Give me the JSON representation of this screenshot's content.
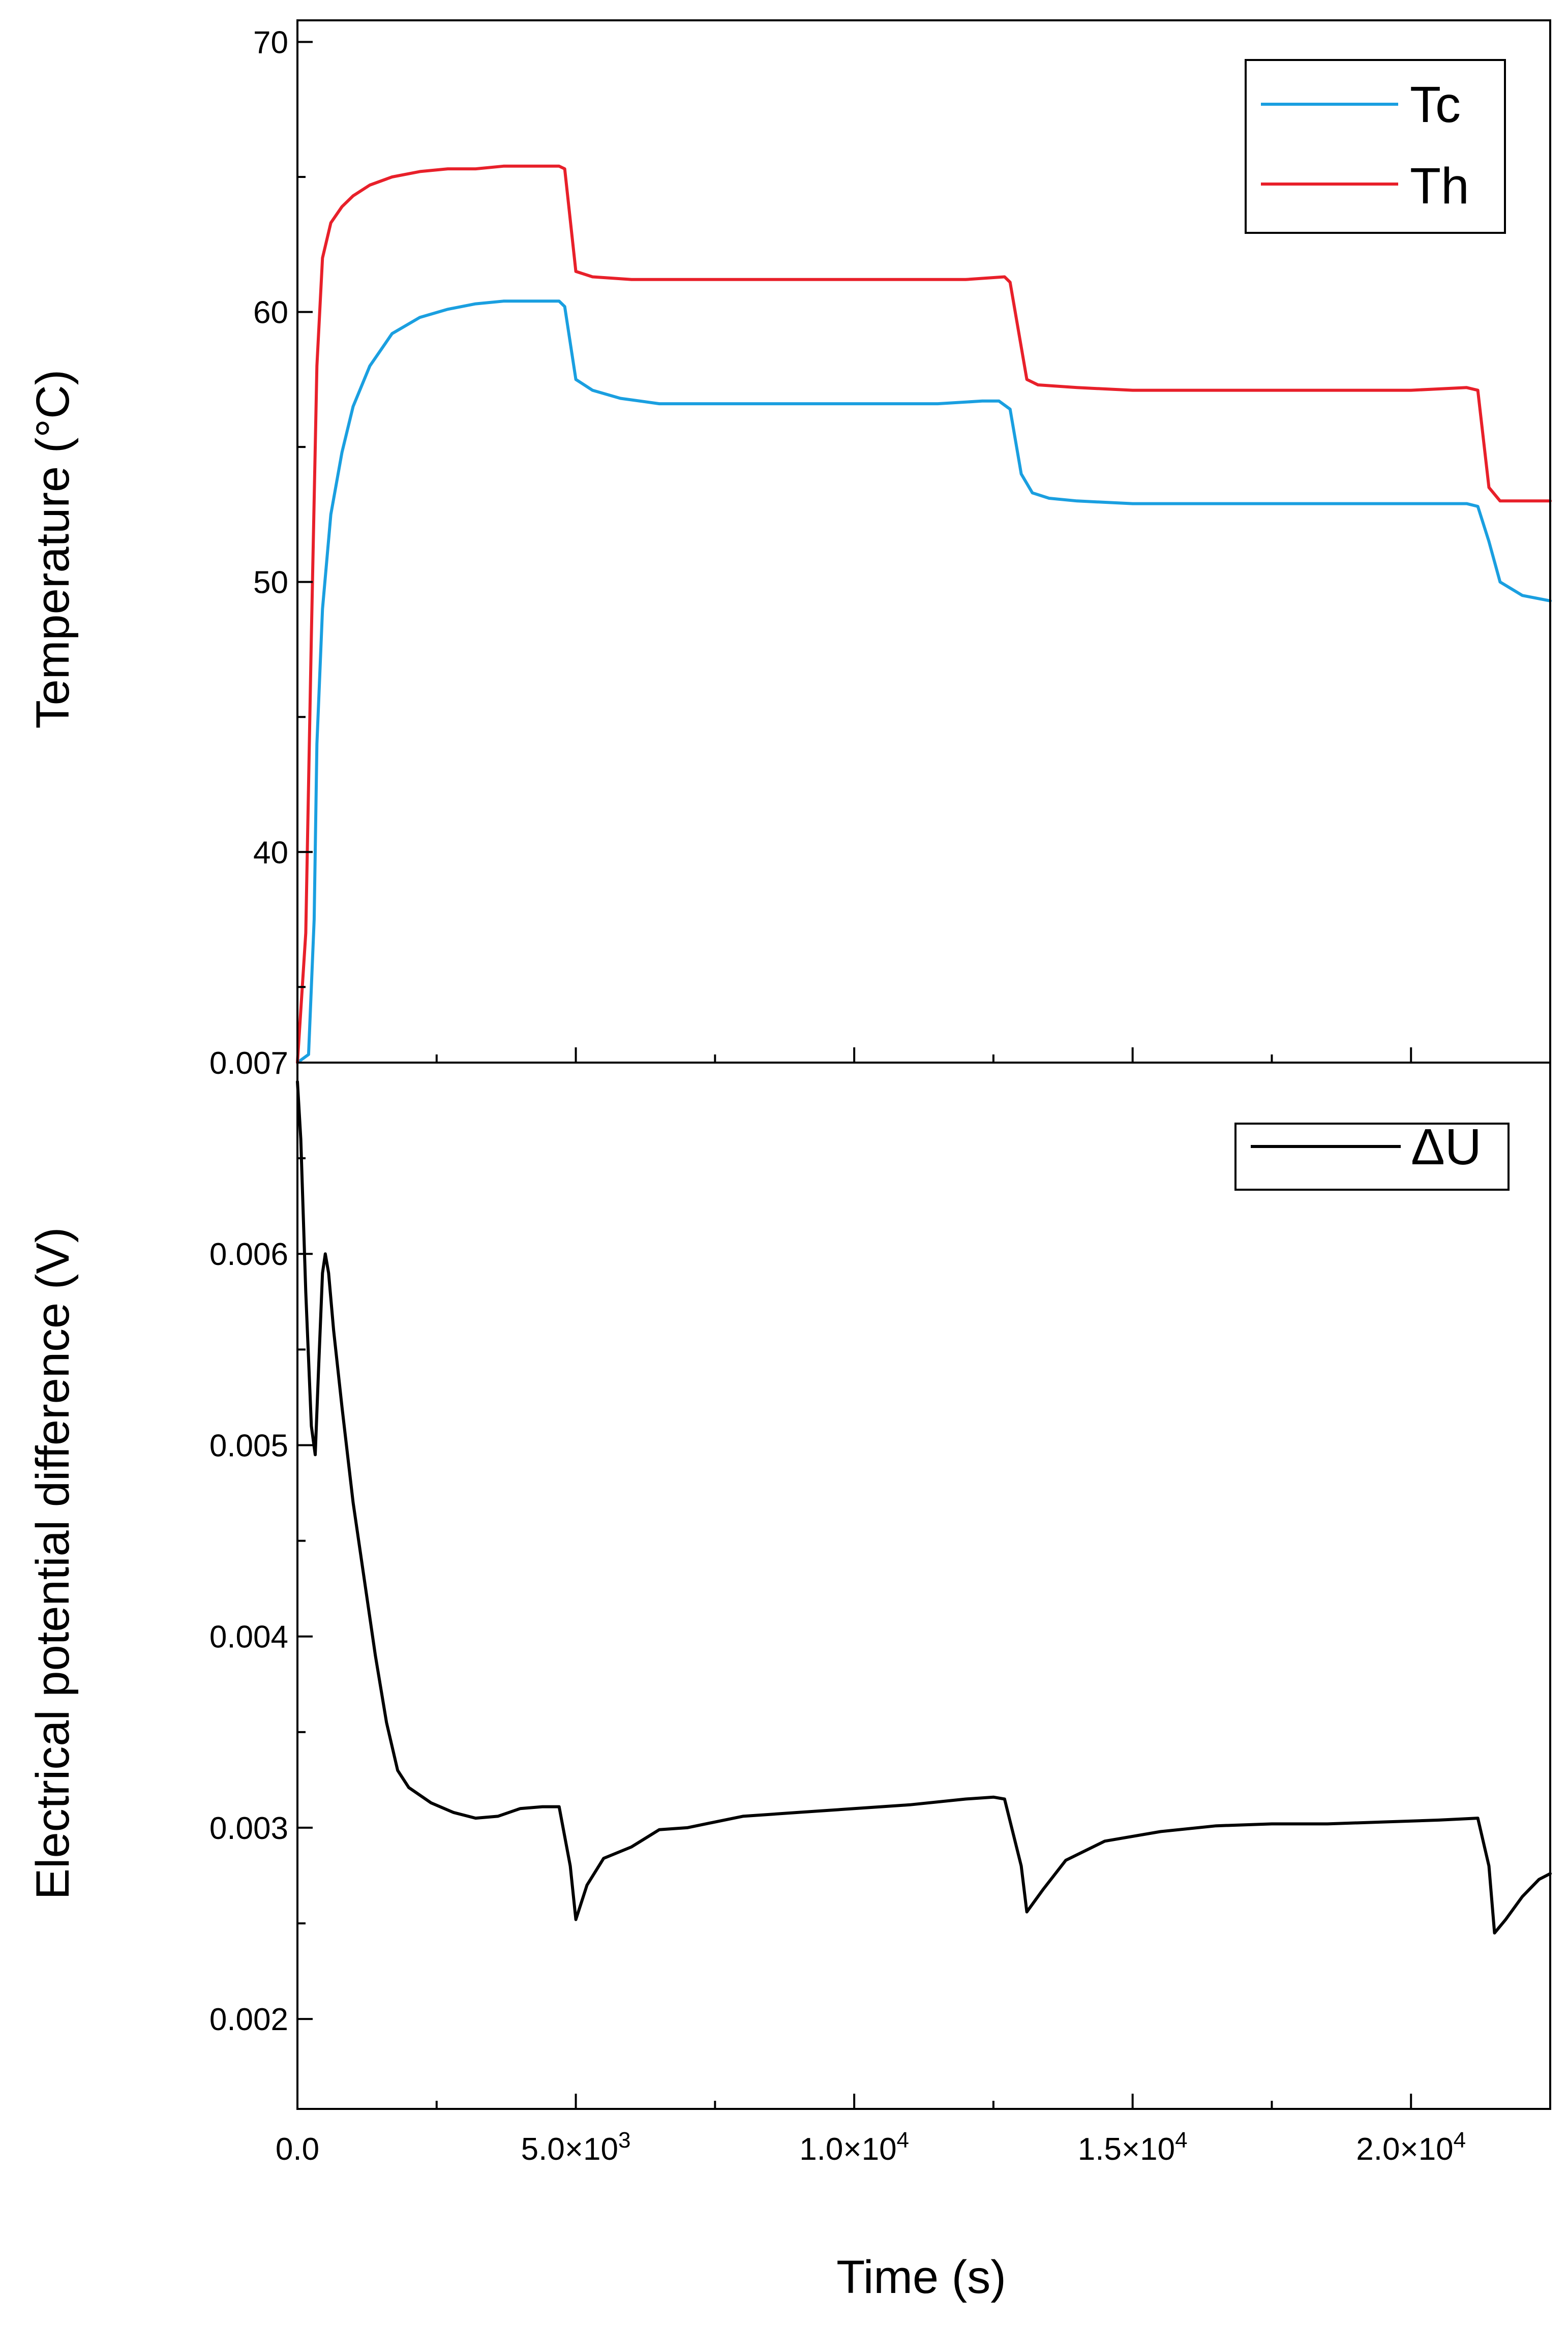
{
  "chart_data": [
    {
      "type": "line",
      "panel": "top",
      "ylabel": "Temperature (°C)",
      "xlabel": "",
      "xlim": [
        0,
        22500
      ],
      "ylim": [
        32.2,
        70.8
      ],
      "yticks": [
        40,
        50,
        60,
        70
      ],
      "ytick_labels": [
        "40",
        "50",
        "60",
        "70"
      ],
      "legend_position": "top-right",
      "series": [
        {
          "name": "Tc",
          "color": "#1a9fe0",
          "x": [
            0,
            200,
            300,
            350,
            450,
            600,
            800,
            1000,
            1300,
            1700,
            2200,
            2700,
            3200,
            3700,
            4200,
            4700,
            4800,
            5000,
            5300,
            5800,
            6500,
            7500,
            8500,
            9500,
            10500,
            11500,
            12300,
            12600,
            12800,
            13000,
            13200,
            13500,
            14000,
            15000,
            16000,
            17000,
            18000,
            19000,
            20000,
            21000,
            21200,
            21400,
            21600,
            22000,
            22500
          ],
          "y": [
            32.2,
            32.5,
            37.5,
            44,
            49,
            52.5,
            54.8,
            56.5,
            58,
            59.2,
            59.8,
            60.1,
            60.3,
            60.4,
            60.4,
            60.4,
            60.2,
            57.5,
            57.1,
            56.8,
            56.6,
            56.6,
            56.6,
            56.6,
            56.6,
            56.6,
            56.7,
            56.7,
            56.4,
            54,
            53.3,
            53.1,
            53,
            52.9,
            52.9,
            52.9,
            52.9,
            52.9,
            52.9,
            52.9,
            52.8,
            51.5,
            50,
            49.5,
            49.3
          ]
        },
        {
          "name": "Th",
          "color": "#e8202a",
          "x": [
            0,
            150,
            250,
            350,
            450,
            600,
            800,
            1000,
            1300,
            1700,
            2200,
            2700,
            3200,
            3700,
            4200,
            4700,
            4800,
            5000,
            5300,
            6000,
            7000,
            8000,
            9000,
            10000,
            11000,
            12000,
            12700,
            12800,
            13100,
            13300,
            14000,
            15000,
            16000,
            17000,
            18000,
            19000,
            20000,
            21000,
            21200,
            21400,
            21600,
            22000,
            22500
          ],
          "y": [
            32.2,
            37,
            48,
            58,
            62,
            63.3,
            63.9,
            64.3,
            64.7,
            65,
            65.2,
            65.3,
            65.3,
            65.4,
            65.4,
            65.4,
            65.3,
            61.5,
            61.3,
            61.2,
            61.2,
            61.2,
            61.2,
            61.2,
            61.2,
            61.2,
            61.3,
            61.1,
            57.5,
            57.3,
            57.2,
            57.1,
            57.1,
            57.1,
            57.1,
            57.1,
            57.1,
            57.2,
            57.1,
            53.5,
            53,
            53,
            53
          ]
        }
      ]
    },
    {
      "type": "line",
      "panel": "bottom",
      "ylabel": "Electrical potential difference (V)",
      "xlabel": "Time (s)",
      "xlim": [
        0,
        22500
      ],
      "ylim": [
        0.00153,
        0.007
      ],
      "yticks": [
        0.002,
        0.003,
        0.004,
        0.005,
        0.006,
        0.007
      ],
      "ytick_labels": [
        "0.002",
        "0.003",
        "0.004",
        "0.005",
        "0.006",
        "0.007"
      ],
      "xticks": [
        0,
        5000,
        10000,
        15000,
        20000
      ],
      "xtick_labels": [
        "0.0",
        "5.0×10",
        "1.0×10",
        "1.5×10",
        "2.0×10"
      ],
      "xtick_exponents": [
        "",
        "3",
        "4",
        "4",
        "4"
      ],
      "legend_position": "top-right",
      "series": [
        {
          "name": "ΔU",
          "color": "#000000",
          "x": [
            0,
            60,
            150,
            250,
            320,
            380,
            450,
            500,
            560,
            650,
            800,
            1000,
            1200,
            1400,
            1600,
            1800,
            2000,
            2400,
            2800,
            3200,
            3600,
            4000,
            4400,
            4700,
            4900,
            5000,
            5200,
            5500,
            6000,
            6500,
            7000,
            8000,
            9000,
            10000,
            11000,
            12000,
            12500,
            12700,
            13000,
            13100,
            13400,
            13800,
            14500,
            15500,
            16500,
            17500,
            18500,
            19500,
            20500,
            21200,
            21400,
            21500,
            21700,
            22000,
            22300,
            22500
          ],
          "y": [
            0.0069,
            0.0066,
            0.0058,
            0.0051,
            0.00495,
            0.0054,
            0.0059,
            0.006,
            0.0059,
            0.0056,
            0.0052,
            0.0047,
            0.0043,
            0.0039,
            0.00355,
            0.0033,
            0.00321,
            0.00313,
            0.00308,
            0.00305,
            0.00306,
            0.0031,
            0.00311,
            0.00311,
            0.0028,
            0.00252,
            0.0027,
            0.00284,
            0.0029,
            0.00299,
            0.003,
            0.00306,
            0.00308,
            0.0031,
            0.00312,
            0.00315,
            0.00316,
            0.00315,
            0.0028,
            0.00256,
            0.00268,
            0.00283,
            0.00293,
            0.00298,
            0.00301,
            0.00302,
            0.00302,
            0.00303,
            0.00304,
            0.00305,
            0.0028,
            0.00245,
            0.00252,
            0.00264,
            0.00273,
            0.00276
          ]
        }
      ]
    }
  ]
}
